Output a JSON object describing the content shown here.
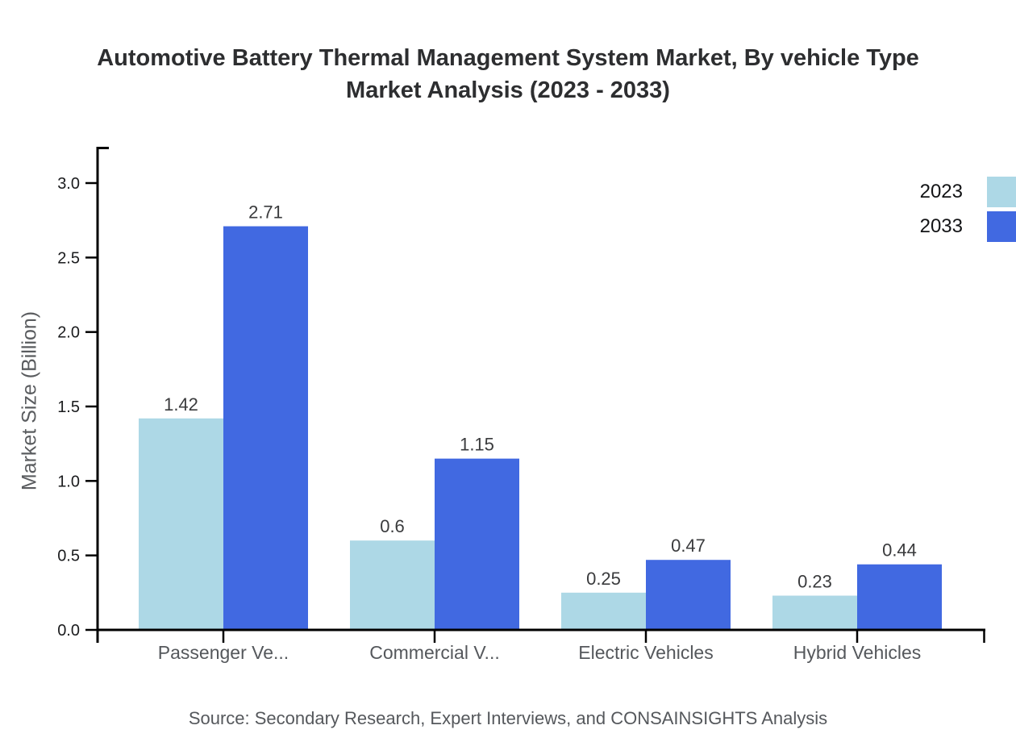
{
  "page": {
    "title_line1": "Automotive Battery Thermal Management System Market, By vehicle Type",
    "title_line2": "Market Analysis (2023 - 2033)",
    "source_note": "Source: Secondary Research, Expert Interviews, and CONSAINSIGHTS Analysis"
  },
  "chart_data": {
    "type": "bar",
    "title": "Automotive Battery Thermal Management System Market, By vehicle Type Market Analysis (2023 - 2033)",
    "xlabel": "",
    "ylabel": "Market Size (Billion)",
    "categories": [
      "Passenger Ve...",
      "Commercial V...",
      "Electric Vehicles",
      "Hybrid Vehicles"
    ],
    "series": [
      {
        "name": "2023",
        "color": "#ADD8E6",
        "values": [
          1.42,
          0.6,
          0.25,
          0.23
        ]
      },
      {
        "name": "2033",
        "color": "#4169E1",
        "values": [
          2.71,
          1.15,
          0.47,
          0.44
        ]
      }
    ],
    "yticks": [
      0,
      0.5,
      1,
      1.5,
      2,
      2.5,
      3
    ],
    "ylim": [
      0,
      3.25
    ],
    "grid": false,
    "value_labels": true,
    "legend_position": "top-right",
    "source": "Source: Secondary Research, Expert Interviews, and CONSAINSIGHTS Analysis"
  }
}
